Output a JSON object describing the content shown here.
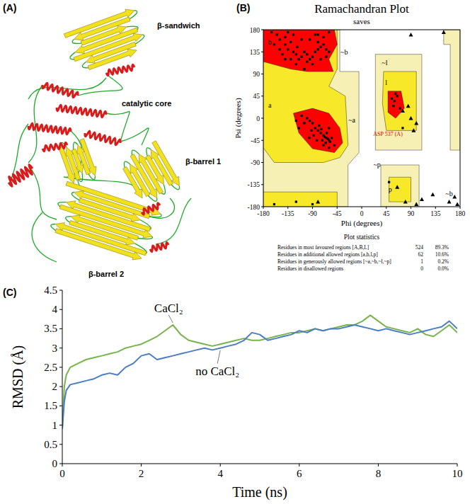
{
  "chart_data": [
    {
      "type": "scatter",
      "panel_label": "(B)",
      "title": "Ramachandran Plot",
      "subtitle": "saves",
      "x_label": "Phi (degrees)",
      "y_label": "Psi (degrees)",
      "xlim": [
        -180,
        180
      ],
      "ylim": [
        -180,
        180
      ],
      "xticks": [
        -180,
        -135,
        -90,
        -45,
        0,
        45,
        90,
        135,
        180
      ],
      "yticks": [
        -180,
        -135,
        -90,
        -45,
        0,
        45,
        90,
        135,
        180
      ],
      "grid": false,
      "regions": [
        {
          "color": "#f7f0b4",
          "polygons": [
            [
              [
                -180,
                180
              ],
              [
                -40,
                180
              ],
              [
                -40,
                95
              ],
              [
                -5,
                95
              ],
              [
                -5,
                -70
              ],
              [
                -25,
                -95
              ],
              [
                -25,
                -180
              ],
              [
                -180,
                -180
              ]
            ],
            [
              [
                25,
                130
              ],
              [
                110,
                130
              ],
              [
                110,
                -65
              ],
              [
                25,
                -65
              ]
            ],
            [
              [
                35,
                -95
              ],
              [
                105,
                -95
              ],
              [
                105,
                -180
              ],
              [
                35,
                -180
              ]
            ],
            [
              [
                150,
                180
              ],
              [
                180,
                180
              ],
              [
                180,
                -65
              ],
              [
                162,
                -65
              ],
              [
                162,
                150
              ],
              [
                150,
                150
              ]
            ]
          ]
        },
        {
          "color": "#f7e829",
          "polygons": [
            [
              [
                -180,
                180
              ],
              [
                -45,
                180
              ],
              [
                -45,
                100
              ],
              [
                -60,
                65
              ],
              [
                -30,
                45
              ],
              [
                -25,
                -55
              ],
              [
                -40,
                -80
              ],
              [
                -70,
                -90
              ],
              [
                -160,
                -90
              ],
              [
                -180,
                -60
              ]
            ],
            [
              [
                -180,
                -150
              ],
              [
                -45,
                -150
              ],
              [
                -45,
                -180
              ],
              [
                -180,
                -180
              ]
            ],
            [
              [
                40,
                95
              ],
              [
                100,
                95
              ],
              [
                100,
                -25
              ],
              [
                45,
                -25
              ],
              [
                38,
                30
              ]
            ],
            [
              [
                50,
                -120
              ],
              [
                90,
                -120
              ],
              [
                90,
                -170
              ],
              [
                50,
                -170
              ]
            ]
          ]
        },
        {
          "color": "#ff0000",
          "polygons": [
            [
              [
                -180,
                180
              ],
              [
                -50,
                180
              ],
              [
                -45,
                150
              ],
              [
                -60,
                120
              ],
              [
                -52,
                95
              ],
              [
                -100,
                95
              ],
              [
                -130,
                100
              ],
              [
                -180,
                115
              ]
            ],
            [
              [
                -125,
                10
              ],
              [
                -90,
                20
              ],
              [
                -60,
                10
              ],
              [
                -40,
                -20
              ],
              [
                -35,
                -50
              ],
              [
                -50,
                -70
              ],
              [
                -90,
                -62
              ],
              [
                -115,
                -30
              ]
            ],
            [
              [
                48,
                55
              ],
              [
                72,
                55
              ],
              [
                78,
                20
              ],
              [
                62,
                0
              ],
              [
                48,
                12
              ]
            ]
          ]
        }
      ],
      "annotations": [
        {
          "text": "b",
          "x": -168,
          "y": 150,
          "color": "#000000"
        },
        {
          "text": "~b",
          "x": -32,
          "y": 130,
          "color": "#000000"
        },
        {
          "text": "a",
          "x": -168,
          "y": 22,
          "color": "#000000"
        },
        {
          "text": "~a",
          "x": -18,
          "y": -8,
          "color": "#000000"
        },
        {
          "text": "~l",
          "x": 42,
          "y": 108,
          "color": "#000000"
        },
        {
          "text": "l",
          "x": 45,
          "y": 68,
          "color": "#000000"
        },
        {
          "text": "~p",
          "x": 28,
          "y": -100,
          "color": "#000000"
        },
        {
          "text": "p",
          "x": 52,
          "y": -150,
          "color": "#000000"
        },
        {
          "text": "~b",
          "x": 160,
          "y": -158,
          "color": "#000000"
        },
        {
          "text": "ASP 537 (A)",
          "x": 48,
          "y": -36,
          "color": "#e00000"
        }
      ],
      "series": [
        {
          "marker": "square",
          "color": "#000000",
          "x": [
            -150,
            -140,
            -135,
            -130,
            -125,
            -120,
            -118,
            -115,
            -110,
            -105,
            -100,
            -95,
            -90,
            -85,
            -80,
            -75,
            -70,
            -65,
            -60,
            -140,
            -155,
            -160,
            -145,
            -130,
            -120,
            -100,
            -90,
            -80,
            -70,
            -110,
            -125,
            -135,
            -95,
            -85,
            -65,
            -75,
            -150,
            -165,
            -105,
            -140,
            -65,
            -62,
            -60,
            -68,
            -70,
            -58,
            -75,
            -80,
            -85,
            -90,
            -95,
            -100,
            -72,
            -64,
            -55,
            -60,
            -78,
            -88,
            -66,
            -92,
            -105,
            -110,
            -70,
            -50,
            -82,
            -74,
            -96,
            -115,
            -60,
            -120,
            55,
            60,
            65,
            58,
            70,
            62,
            75,
            -60,
            -90,
            -160,
            -120,
            -80,
            50
          ],
          "values": [
            160,
            150,
            140,
            155,
            135,
            130,
            145,
            120,
            125,
            135,
            130,
            120,
            125,
            135,
            140,
            145,
            150,
            140,
            135,
            165,
            170,
            150,
            130,
            120,
            110,
            115,
            110,
            155,
            165,
            160,
            170,
            175,
            160,
            170,
            125,
            120,
            140,
            175,
            100,
            120,
            -40,
            -42,
            -45,
            -38,
            -35,
            -48,
            -30,
            -25,
            -20,
            -10,
            -5,
            0,
            -45,
            -30,
            -40,
            -20,
            -15,
            -35,
            -50,
            -25,
            -10,
            5,
            -55,
            -55,
            -45,
            -22,
            -40,
            -20,
            -60,
            -5,
            40,
            35,
            45,
            25,
            20,
            50,
            -20,
            175,
            -175,
            -175,
            -170,
            170,
            -130
          ]
        },
        {
          "marker": "triangle",
          "color": "#000000",
          "x": [
            75,
            90,
            100,
            85,
            95,
            80,
            100,
            130,
            160,
            175,
            90,
            150,
            170,
            110,
            65,
            -80
          ],
          "values": [
            15,
            0,
            -10,
            25,
            -25,
            -170,
            -175,
            -155,
            -170,
            -175,
            170,
            175,
            -160,
            -165,
            -140,
            -170
          ]
        }
      ]
    },
    {
      "type": "line",
      "panel_label": "(C)",
      "x_label": "Time (ns)",
      "y_label": "RMSD (Å)",
      "xlim": [
        0,
        10
      ],
      "ylim": [
        0,
        4.5
      ],
      "xticks": [
        0,
        2,
        4,
        6,
        8,
        10
      ],
      "yticks": [
        0,
        0.5,
        1,
        1.5,
        2,
        2.5,
        3,
        3.5,
        4,
        4.5
      ],
      "grid": false,
      "x": [
        0,
        0.05,
        0.1,
        0.2,
        0.4,
        0.6,
        0.8,
        1.0,
        1.2,
        1.4,
        1.6,
        1.8,
        2.0,
        2.2,
        2.4,
        2.6,
        2.8,
        3.0,
        3.2,
        3.4,
        3.6,
        3.8,
        4.0,
        4.2,
        4.4,
        4.6,
        4.8,
        5.0,
        5.2,
        5.4,
        5.6,
        5.8,
        6.0,
        6.2,
        6.4,
        6.6,
        6.8,
        7.0,
        7.2,
        7.4,
        7.6,
        7.8,
        8.0,
        8.2,
        8.4,
        8.6,
        8.8,
        9.0,
        9.2,
        9.4,
        9.6,
        9.8,
        10.0
      ],
      "series": [
        {
          "name": "CaCl₂",
          "color": "#77b34b",
          "values": [
            0.9,
            2.0,
            2.3,
            2.5,
            2.6,
            2.7,
            2.75,
            2.8,
            2.85,
            2.9,
            3.0,
            3.05,
            3.1,
            3.2,
            3.3,
            3.45,
            3.6,
            3.35,
            3.2,
            3.15,
            3.1,
            3.05,
            3.1,
            3.15,
            3.2,
            3.25,
            3.2,
            3.2,
            3.25,
            3.3,
            3.35,
            3.4,
            3.4,
            3.45,
            3.5,
            3.45,
            3.5,
            3.55,
            3.6,
            3.6,
            3.7,
            3.85,
            3.7,
            3.55,
            3.5,
            3.45,
            3.4,
            3.5,
            3.35,
            3.3,
            3.45,
            3.6,
            3.4
          ]
        },
        {
          "name": "no CaCl₂",
          "color": "#4a7dc4",
          "values": [
            0.9,
            1.6,
            1.9,
            2.05,
            2.1,
            2.15,
            2.2,
            2.3,
            2.35,
            2.3,
            2.5,
            2.6,
            2.8,
            2.85,
            2.7,
            2.75,
            2.8,
            2.85,
            2.9,
            2.95,
            3.0,
            2.95,
            3.0,
            3.05,
            3.1,
            3.2,
            3.4,
            3.35,
            3.2,
            3.25,
            3.3,
            3.35,
            3.45,
            3.4,
            3.5,
            3.45,
            3.5,
            3.5,
            3.55,
            3.6,
            3.55,
            3.5,
            3.45,
            3.5,
            3.45,
            3.4,
            3.35,
            3.4,
            3.45,
            3.5,
            3.55,
            3.7,
            3.5
          ]
        }
      ]
    }
  ],
  "structure": {
    "panel_label": "(A)",
    "labels": [
      "β-sandwich",
      "catalytic core",
      "β-barrel 1",
      "β-barrel 2"
    ]
  },
  "statistics": {
    "title": "Plot statistics",
    "rows": [
      [
        "Residues in most favoured regions [A,B,L]",
        524,
        "89.3%"
      ],
      [
        "Residues in additional allowed regions [a,b,l,p]",
        62,
        "10.6%"
      ],
      [
        "Residues in generously allowed regions [~a,~b,~l,~p]",
        1,
        "0.2%"
      ],
      [
        "Residues in disallowed regions",
        0,
        "0.0%"
      ]
    ]
  }
}
